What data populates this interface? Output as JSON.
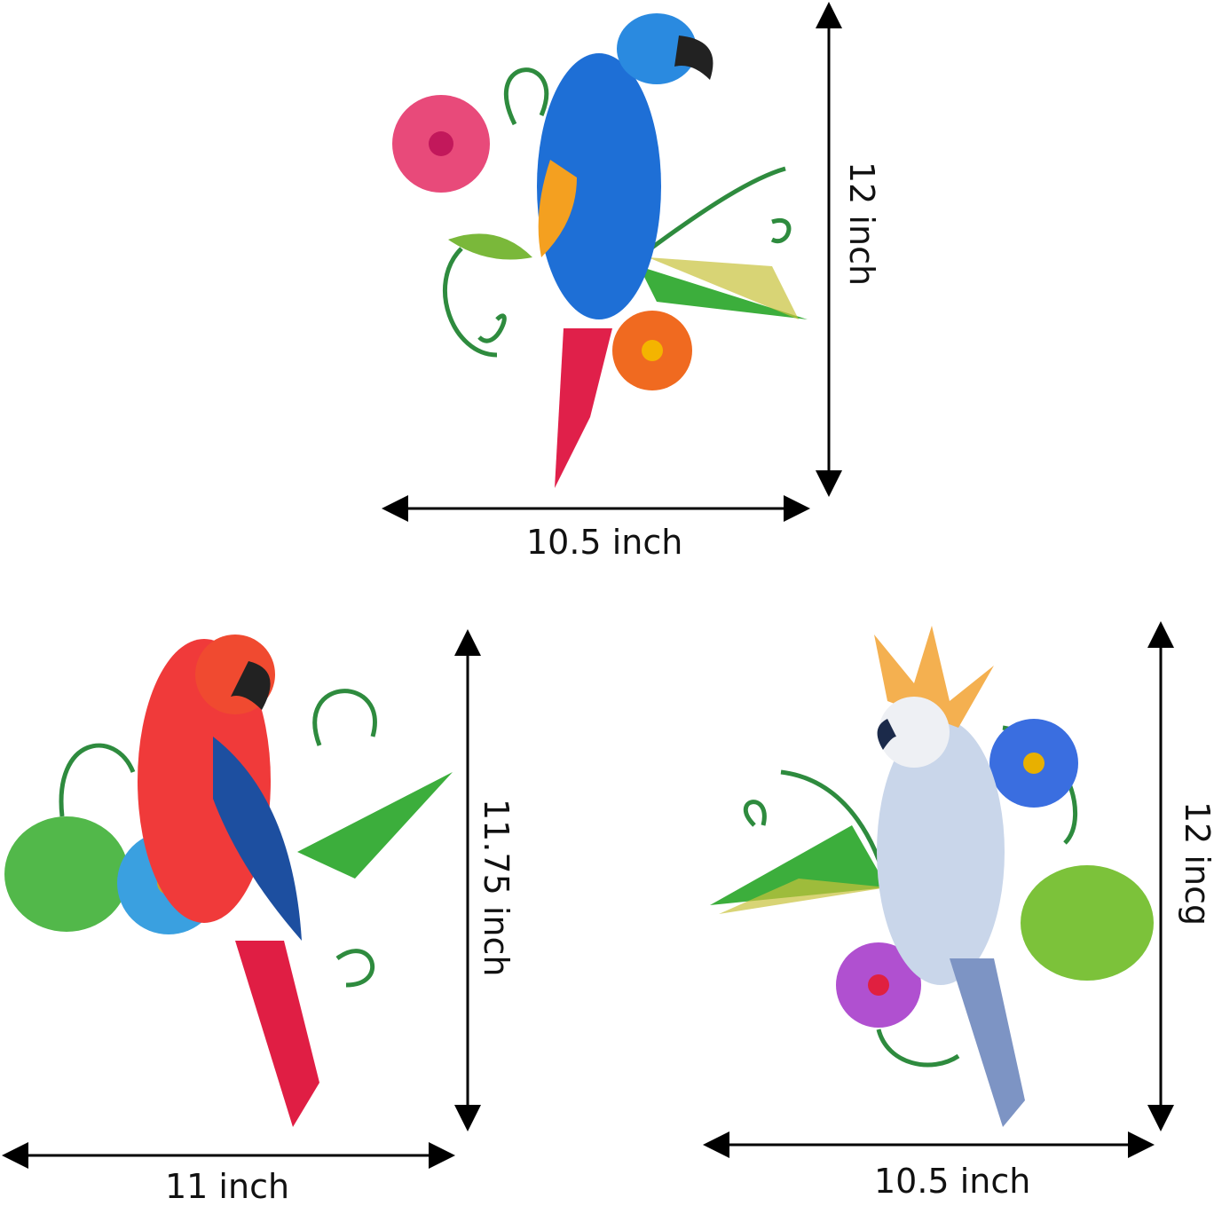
{
  "products": [
    {
      "name": "blue macaw",
      "height_label": "12 inch",
      "width_label": "10.5 inch",
      "body_color": "#1e6fd6",
      "tail_color": "#e0204a"
    },
    {
      "name": "red macaw",
      "height_label": "11.75 inch",
      "width_label": "11 inch",
      "body_color": "#f03a3a",
      "tail_color": "#e01e44"
    },
    {
      "name": "cockatoo",
      "height_label": "12 incg",
      "width_label": "10.5 inch",
      "body_color": "#c9d6ea",
      "tail_color": "#7d94c4"
    }
  ],
  "colors": {
    "leaf": "#3cae3c",
    "stem": "#2e8b3e",
    "arrow": "#000000"
  }
}
